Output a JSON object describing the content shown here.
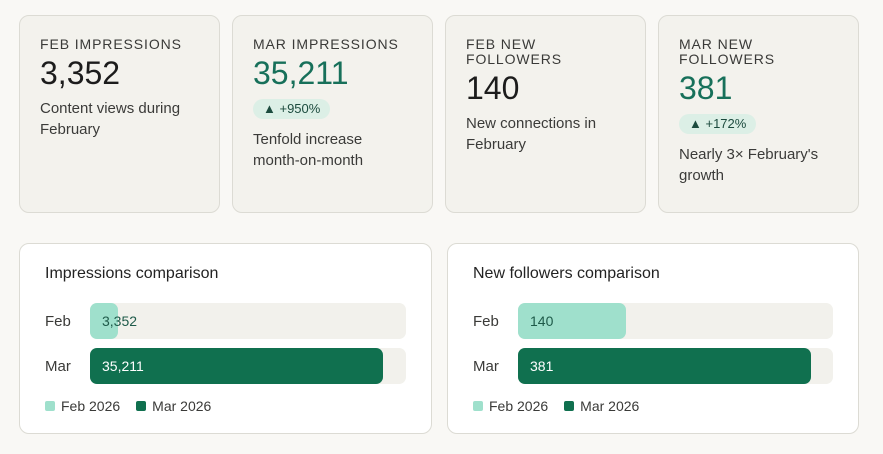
{
  "kpis": [
    {
      "label": "FEB IMPRESSIONS",
      "value": "3,352",
      "badge": "",
      "desc": "Content views during February"
    },
    {
      "label": "MAR IMPRESSIONS",
      "value": "35,211",
      "badge": "▲ +950%",
      "desc": "Tenfold increase month-on-month"
    },
    {
      "label": "FEB NEW FOLLOWERS",
      "value": "140",
      "badge": "",
      "desc": "New connections in February"
    },
    {
      "label": "MAR NEW FOLLOWERS",
      "value": "381",
      "badge": "▲ +172%",
      "desc": "Nearly 3× February's growth"
    }
  ],
  "colors": {
    "feb": "#9fe0cc",
    "mar": "#10704f",
    "accent": "#17705a"
  },
  "chart_data": [
    {
      "type": "bar",
      "title": "Impressions comparison",
      "categories": [
        "Feb",
        "Mar"
      ],
      "values": [
        3352,
        35211
      ],
      "value_labels": [
        "3,352",
        "35,211"
      ],
      "xlim": [
        0,
        38000
      ],
      "legend": [
        "Feb 2026",
        "Mar 2026"
      ],
      "legend_placement": "bottom-left"
    },
    {
      "type": "bar",
      "title": "New followers comparison",
      "categories": [
        "Feb",
        "Mar"
      ],
      "values": [
        140,
        381
      ],
      "value_labels": [
        "140",
        "381"
      ],
      "xlim": [
        0,
        410
      ],
      "legend": [
        "Feb 2026",
        "Mar 2026"
      ],
      "legend_placement": "bottom-left"
    }
  ]
}
